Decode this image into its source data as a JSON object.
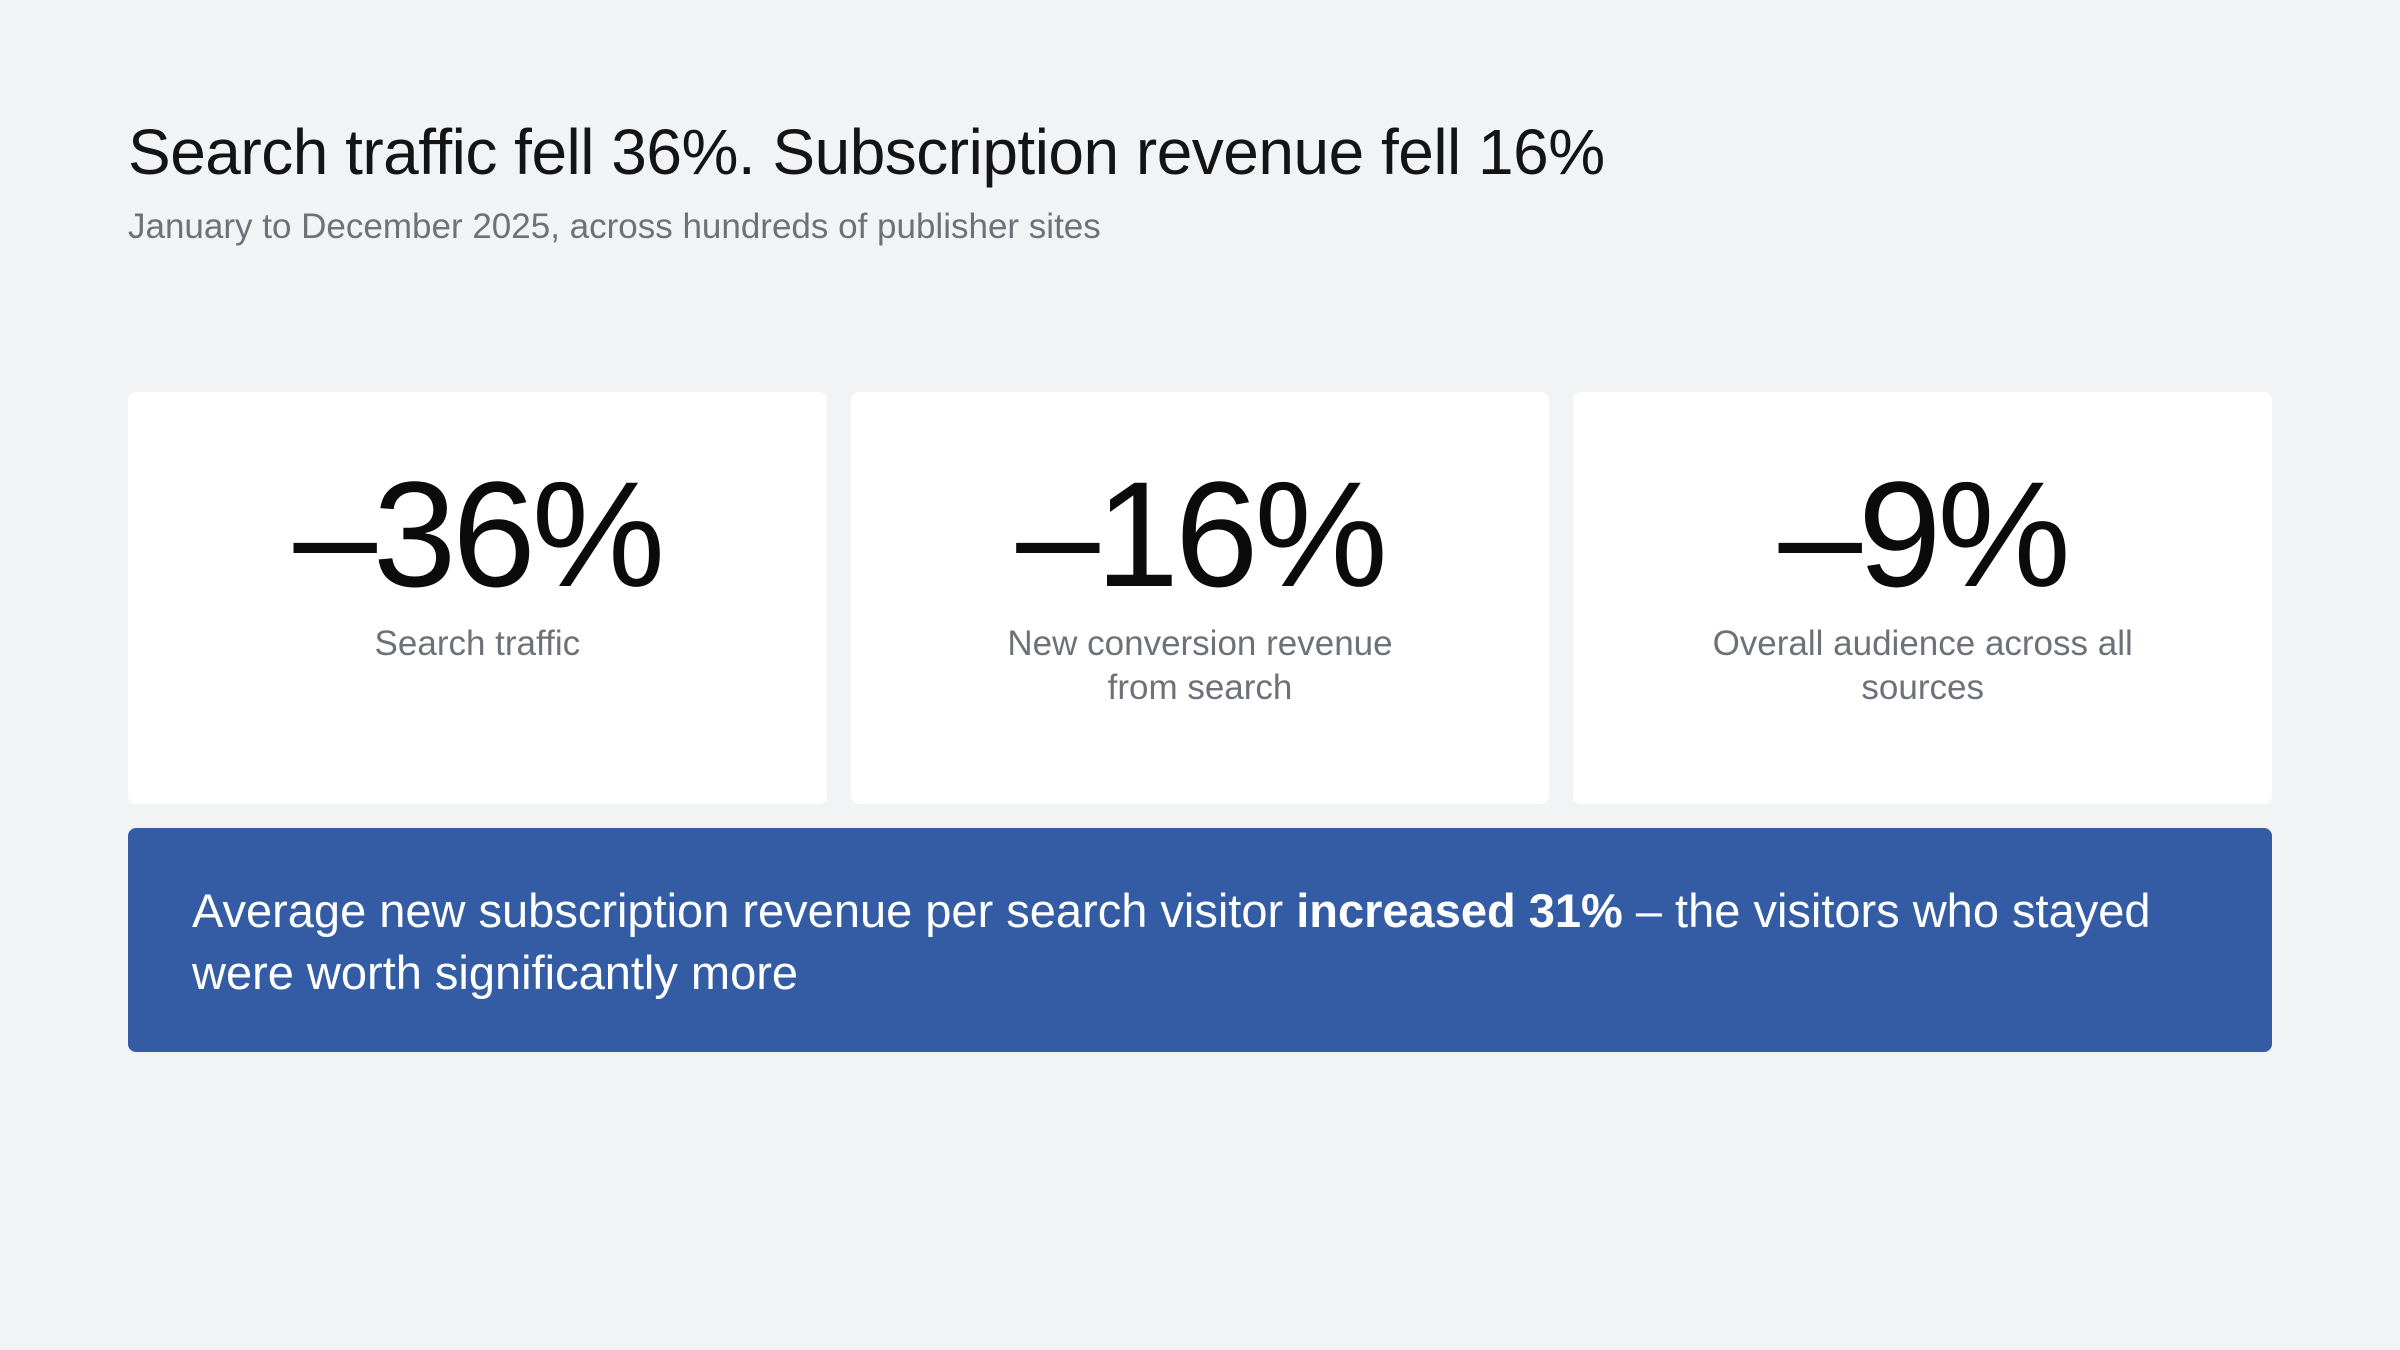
{
  "header": {
    "title": "Search traffic fell 36%. Subscription revenue fell 16%",
    "subtitle": "January to December 2025, across hundreds of publisher sites"
  },
  "stats": [
    {
      "value": "–36%",
      "label": "Search traffic"
    },
    {
      "value": "–16%",
      "label": "New conversion revenue from search"
    },
    {
      "value": "–9%",
      "label": "Overall audience across all sources"
    }
  ],
  "callout": {
    "text_before": "Average new subscription revenue per search visitor ",
    "text_bold": "increased 31%",
    "text_after": " – the visitors who stayed were worth significantly more"
  },
  "colors": {
    "background": "#f2f3f5",
    "card": "#ffffff",
    "callout": "#335ca5"
  }
}
